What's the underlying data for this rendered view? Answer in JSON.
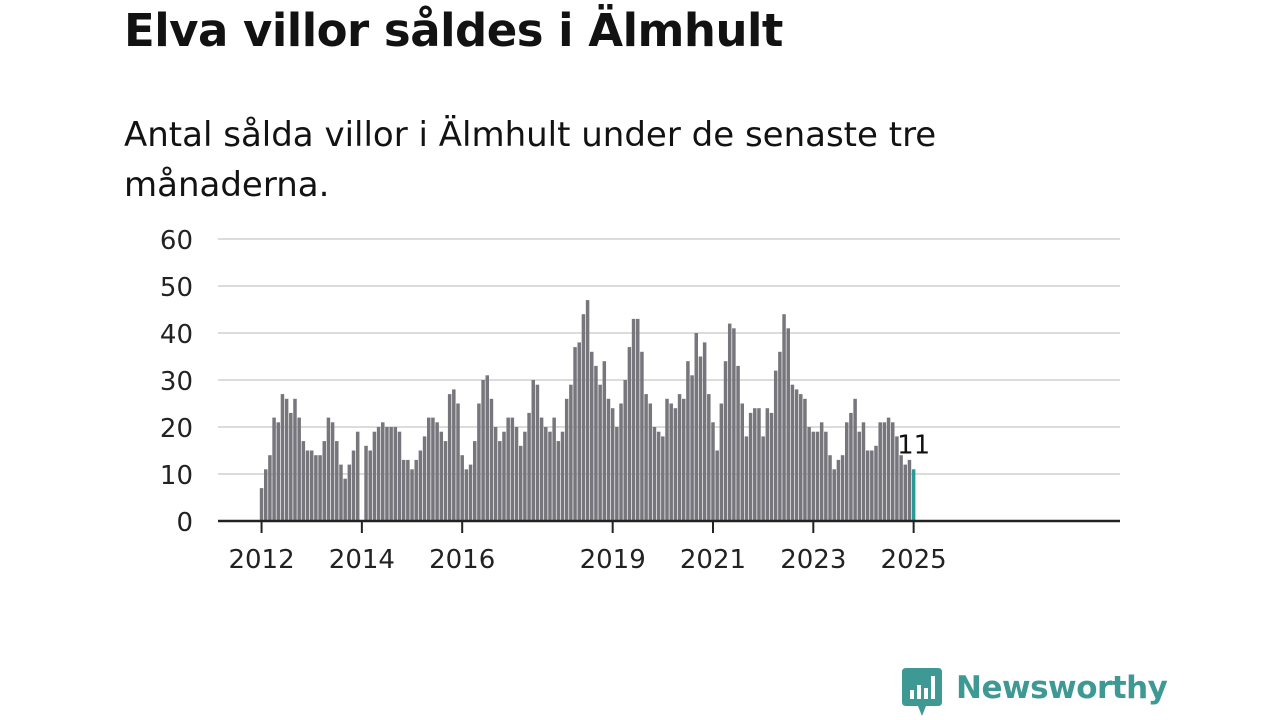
{
  "title": "Elva villor såldes i Älmhult",
  "subtitle": "Antal sålda villor i Älmhult under de senaste tre månaderna.",
  "brand": {
    "name": "Newsworthy",
    "color": "#3e9994",
    "icon": "newsworthy-logo-icon"
  },
  "colors": {
    "bar": "#77767c",
    "highlight": "#2b9a96",
    "grid": "#dcdcdc",
    "axis": "#222222",
    "text": "#222222"
  },
  "chart_data": {
    "type": "bar",
    "title": "Elva villor såldes i Älmhult",
    "xlabel": "",
    "ylabel": "",
    "ylim": [
      0,
      60
    ],
    "yticks": [
      0,
      10,
      20,
      30,
      40,
      50,
      60
    ],
    "xtick_labels": [
      "2012",
      "2014",
      "2016",
      "2019",
      "2021",
      "2023",
      "2025"
    ],
    "grid": true,
    "start": "2012-01",
    "frequency": "monthly",
    "highlight_label": "11",
    "values": [
      7,
      11,
      14,
      22,
      21,
      27,
      26,
      23,
      26,
      22,
      17,
      15,
      15,
      14,
      14,
      17,
      22,
      21,
      17,
      12,
      9,
      12,
      15,
      19,
      0,
      16,
      15,
      19,
      20,
      21,
      20,
      20,
      20,
      19,
      13,
      13,
      11,
      13,
      15,
      18,
      22,
      22,
      21,
      19,
      17,
      27,
      28,
      25,
      14,
      11,
      12,
      17,
      25,
      30,
      31,
      26,
      20,
      17,
      19,
      22,
      22,
      20,
      16,
      19,
      23,
      30,
      29,
      22,
      20,
      19,
      22,
      17,
      19,
      26,
      29,
      37,
      38,
      44,
      47,
      36,
      33,
      29,
      34,
      26,
      24,
      20,
      25,
      30,
      37,
      43,
      43,
      36,
      27,
      25,
      20,
      19,
      18,
      26,
      25,
      24,
      27,
      26,
      34,
      31,
      40,
      35,
      38,
      27,
      21,
      15,
      25,
      34,
      42,
      41,
      33,
      25,
      18,
      23,
      24,
      24,
      18,
      24,
      23,
      32,
      36,
      44,
      41,
      29,
      28,
      27,
      26,
      20,
      19,
      19,
      21,
      19,
      14,
      11,
      13,
      14,
      21,
      23,
      26,
      19,
      21,
      15,
      15,
      16,
      21,
      21,
      22,
      21,
      18,
      14,
      12,
      13,
      11
    ]
  }
}
